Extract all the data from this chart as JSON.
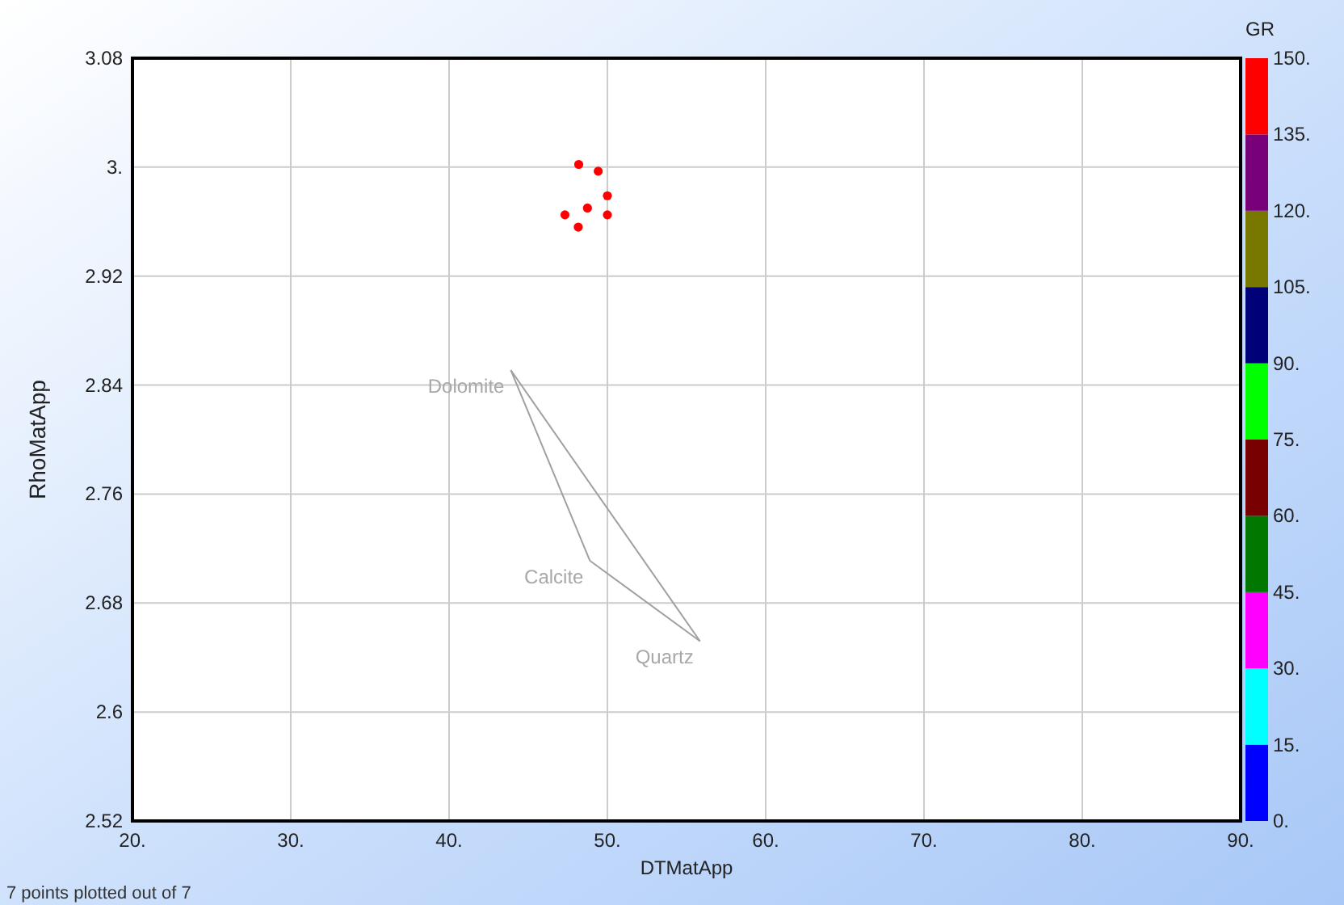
{
  "chart_data": {
    "type": "scatter",
    "xlabel": "DTMatApp",
    "ylabel": "RhoMatApp",
    "clabel": "GR",
    "xlim": [
      20,
      90
    ],
    "xticks": [
      {
        "value": 20,
        "label": "20."
      },
      {
        "value": 30,
        "label": "30."
      },
      {
        "value": 40,
        "label": "40."
      },
      {
        "value": 50,
        "label": "50."
      },
      {
        "value": 60,
        "label": "60."
      },
      {
        "value": 70,
        "label": "70."
      },
      {
        "value": 80,
        "label": "80."
      },
      {
        "value": 90,
        "label": "90."
      }
    ],
    "ylim": [
      2.52,
      3.08
    ],
    "yticks": [
      2.52,
      2.6,
      2.68,
      2.76,
      2.84,
      2.92,
      {
        "value": 3,
        "label": "3."
      },
      3.08
    ],
    "clim": [
      0,
      150
    ],
    "cticks": [
      {
        "value": 0,
        "label": "0."
      },
      {
        "value": 15,
        "label": "15."
      },
      {
        "value": 30,
        "label": "30."
      },
      {
        "value": 45,
        "label": "45."
      },
      {
        "value": 60,
        "label": "60."
      },
      {
        "value": 75,
        "label": "75."
      },
      {
        "value": 90,
        "label": "90."
      },
      {
        "value": 105,
        "label": "105."
      },
      {
        "value": 120,
        "label": "120."
      },
      {
        "value": 135,
        "label": "135."
      },
      {
        "value": 150,
        "label": "150."
      }
    ],
    "grid": true,
    "marker": "circle",
    "series": [
      {
        "type": "scatter",
        "x": [
          48.19,
          49.42,
          50.0,
          48.74,
          47.32,
          50.0,
          48.16
        ],
        "values": [
          3.002,
          2.997,
          2.979,
          2.97,
          2.965,
          2.965,
          2.956
        ],
        "cvalues": [
          142,
          142,
          142,
          142,
          142,
          142,
          142
        ]
      },
      {
        "type": "line",
        "marker": "none",
        "color": "#a0a0a0",
        "x": [
          43.9,
          48.9
        ],
        "values": [
          2.851,
          2.711
        ]
      },
      {
        "type": "line",
        "marker": "none",
        "color": "#a0a0a0",
        "x": [
          48.9,
          55.85
        ],
        "values": [
          2.711,
          2.652
        ]
      },
      {
        "type": "line",
        "marker": "none",
        "color": "#a0a0a0",
        "x": [
          43.9,
          55.85
        ],
        "values": [
          2.851,
          2.652
        ]
      }
    ],
    "annotations": [
      {
        "text": "Dolomite",
        "x": 43.9,
        "y": 2.851
      },
      {
        "text": "Calcite",
        "x": 48.9,
        "y": 2.711
      },
      {
        "text": "Quartz",
        "x": 55.85,
        "y": 2.652
      },
      "7 points plotted out of 7"
    ]
  }
}
